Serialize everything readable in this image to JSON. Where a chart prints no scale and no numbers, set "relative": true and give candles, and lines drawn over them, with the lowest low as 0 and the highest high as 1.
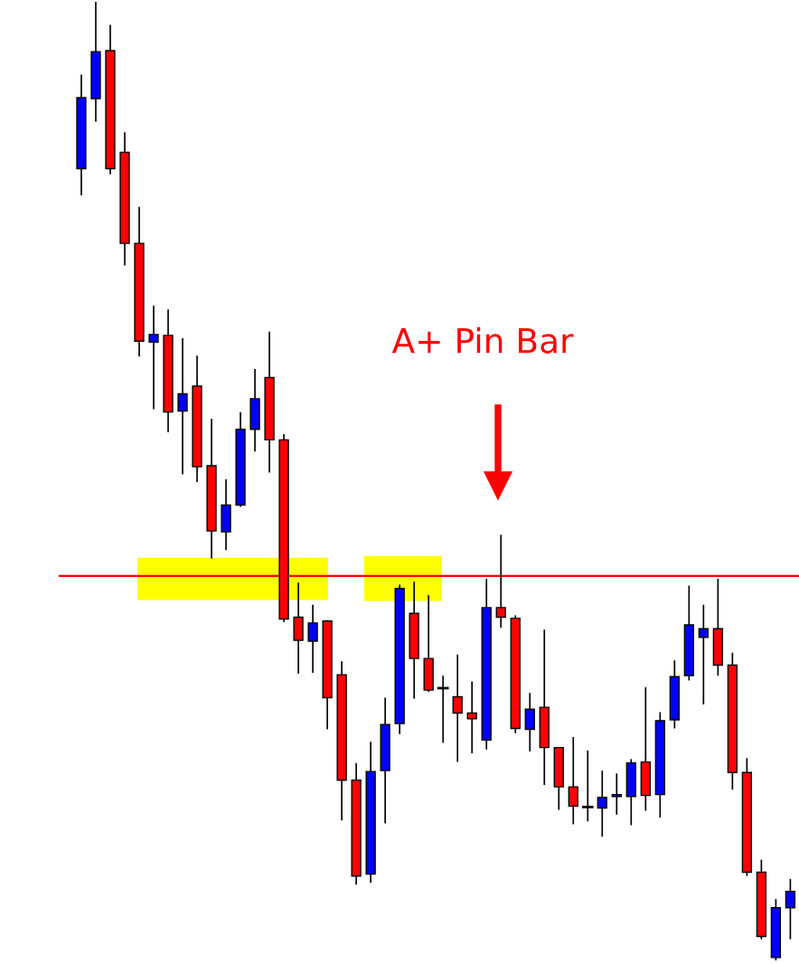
{
  "chart_data": {
    "type": "candlestick",
    "relative": true,
    "annotations": [
      "A+ Pin Bar"
    ],
    "categories": [
      null,
      null,
      null,
      null,
      null,
      null,
      null,
      null,
      null,
      null,
      null,
      null,
      null,
      null,
      null,
      null,
      null,
      null,
      null,
      null,
      null,
      null,
      null,
      null,
      null,
      null,
      null,
      null,
      null,
      null,
      null,
      null,
      null,
      null,
      null,
      null,
      null,
      null,
      null,
      null,
      null,
      null,
      null,
      null,
      null,
      null,
      null,
      null,
      null,
      null
    ],
    "ohlc": [
      [
        0.826,
        0.924,
        0.798,
        0.9
      ],
      [
        0.899,
        1.0,
        0.875,
        0.948
      ],
      [
        0.949,
        0.976,
        0.82,
        0.826
      ],
      [
        0.843,
        0.864,
        0.725,
        0.748
      ],
      [
        0.748,
        0.786,
        0.63,
        0.646
      ],
      [
        0.645,
        0.683,
        0.575,
        0.653
      ],
      [
        0.652,
        0.679,
        0.551,
        0.572
      ],
      [
        0.573,
        0.649,
        0.507,
        0.591
      ],
      [
        0.599,
        0.631,
        0.499,
        0.515
      ],
      [
        0.516,
        0.565,
        0.419,
        0.448
      ],
      [
        0.447,
        0.502,
        0.428,
        0.475
      ],
      [
        0.475,
        0.572,
        0.473,
        0.554
      ],
      [
        0.554,
        0.617,
        0.531,
        0.586
      ],
      [
        0.608,
        0.656,
        0.509,
        0.543
      ],
      [
        0.543,
        0.549,
        0.353,
        0.356
      ],
      [
        0.358,
        0.394,
        0.299,
        0.334
      ],
      [
        0.333,
        0.371,
        0.3,
        0.352
      ],
      [
        0.354,
        0.355,
        0.241,
        0.274
      ],
      [
        0.298,
        0.312,
        0.146,
        0.188
      ],
      [
        0.188,
        0.206,
        0.079,
        0.088
      ],
      [
        0.09,
        0.228,
        0.081,
        0.197
      ],
      [
        0.198,
        0.274,
        0.143,
        0.246
      ],
      [
        0.247,
        0.392,
        0.236,
        0.388
      ],
      [
        0.362,
        0.395,
        0.273,
        0.315
      ],
      [
        0.315,
        0.381,
        0.28,
        0.282
      ],
      [
        0.284,
        0.297,
        0.227,
        0.284
      ],
      [
        0.275,
        0.319,
        0.207,
        0.258
      ],
      [
        0.258,
        0.291,
        0.216,
        0.252
      ],
      [
        0.23,
        0.398,
        0.22,
        0.368
      ],
      [
        0.368,
        0.444,
        0.347,
        0.358
      ],
      [
        0.357,
        0.36,
        0.237,
        0.242
      ],
      [
        0.241,
        0.279,
        0.218,
        0.262
      ],
      [
        0.264,
        0.345,
        0.183,
        0.222
      ],
      [
        0.222,
        0.222,
        0.157,
        0.181
      ],
      [
        0.181,
        0.233,
        0.142,
        0.161
      ],
      [
        0.16,
        0.219,
        0.145,
        0.16
      ],
      [
        0.159,
        0.198,
        0.129,
        0.17
      ],
      [
        0.171,
        0.195,
        0.152,
        0.173
      ],
      [
        0.171,
        0.21,
        0.141,
        0.206
      ],
      [
        0.207,
        0.285,
        0.156,
        0.172
      ],
      [
        0.173,
        0.259,
        0.149,
        0.25
      ],
      [
        0.251,
        0.313,
        0.242,
        0.296
      ],
      [
        0.297,
        0.391,
        0.292,
        0.35
      ],
      [
        0.337,
        0.371,
        0.267,
        0.346
      ],
      [
        0.346,
        0.398,
        0.297,
        0.308
      ],
      [
        0.308,
        0.321,
        0.178,
        0.196
      ],
      [
        0.196,
        0.211,
        0.088,
        0.092
      ],
      [
        0.092,
        0.105,
        0.022,
        0.025
      ],
      [
        0.003,
        0.064,
        0.0,
        0.055
      ],
      [
        0.055,
        0.085,
        0.022,
        0.072
      ]
    ],
    "colors": [
      "#0000ff",
      "#0000ff",
      "#ff0000",
      "#ff0000",
      "#ff0000",
      "#0000ff",
      "#ff0000",
      "#0000ff",
      "#ff0000",
      "#ff0000",
      "#0000ff",
      "#0000ff",
      "#0000ff",
      "#ff0000",
      "#ff0000",
      "#ff0000",
      "#0000ff",
      "#ff0000",
      "#ff0000",
      "#ff0000",
      "#0000ff",
      "#0000ff",
      "#0000ff",
      "#ff0000",
      "#ff0000",
      "#000000",
      "#ff0000",
      "#ff0000",
      "#0000ff",
      "#ff0000",
      "#ff0000",
      "#0000ff",
      "#ff0000",
      "#ff0000",
      "#ff0000",
      "#000000",
      "#0000ff",
      "#0000ff",
      "#0000ff",
      "#ff0000",
      "#0000ff",
      "#0000ff",
      "#0000ff",
      "#0000ff",
      "#ff0000",
      "#ff0000",
      "#ff0000",
      "#ff0000",
      "#0000ff",
      "#0000ff"
    ],
    "ref_lines": [
      {
        "axis": "y",
        "value": 0.401,
        "color": "#ff0000"
      }
    ],
    "bands": [
      {
        "axis": "y",
        "from": 0.376,
        "to": 0.42,
        "color": "#ffff00"
      },
      {
        "axis": "y",
        "from": 0.375,
        "to": 0.422,
        "color": "#ffff00"
      }
    ]
  }
}
